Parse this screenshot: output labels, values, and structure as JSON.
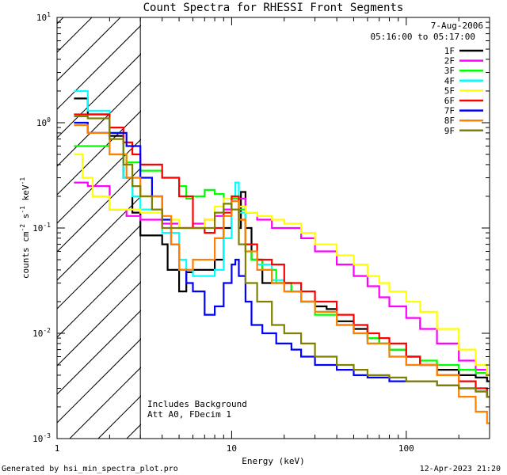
{
  "chart_data": {
    "type": "line",
    "title": "Count Spectra for RHESSI Front Segments",
    "xlabel": "Energy (keV)",
    "ylabel_parts": [
      "counts cm",
      "-2",
      " s",
      "-1",
      " keV",
      "-1"
    ],
    "xscale": "log",
    "yscale": "log",
    "xlim": [
      1,
      300
    ],
    "ylim": [
      0.001,
      10
    ],
    "xticks": [
      {
        "v": 1,
        "t": "1"
      },
      {
        "v": 10,
        "t": "10"
      },
      {
        "v": 100,
        "t": "100"
      }
    ],
    "yticks": [
      {
        "e": 1,
        "base": "10",
        "exp": "1"
      },
      {
        "e": 0,
        "base": "10",
        "exp": "0"
      },
      {
        "e": -1,
        "base": "10",
        "exp": "-1"
      },
      {
        "e": -2,
        "base": "10",
        "exp": "-2"
      },
      {
        "e": -3,
        "base": "10",
        "exp": "-3"
      }
    ],
    "hatched_region": [
      1,
      3
    ],
    "date": "7-Aug-2006",
    "time_range": "05:16:00 to 05:17:00",
    "annotations": [
      "Includes Background",
      "Att A0, FDecim 1"
    ],
    "legend_position": "top-right",
    "series": [
      {
        "name": "1F",
        "color": "#000000",
        "points": [
          [
            1.25,
            1.7
          ],
          [
            1.5,
            1.2
          ],
          [
            2,
            0.75
          ],
          [
            2.4,
            0.3
          ],
          [
            2.7,
            0.14
          ],
          [
            3,
            0.085
          ],
          [
            4,
            0.07
          ],
          [
            4.3,
            0.04
          ],
          [
            5,
            0.025
          ],
          [
            5.5,
            0.038
          ],
          [
            6,
            0.04
          ],
          [
            7,
            0.04
          ],
          [
            8,
            0.05
          ],
          [
            9,
            0.1
          ],
          [
            10,
            0.19
          ],
          [
            11,
            0.1
          ],
          [
            11.3,
            0.22
          ],
          [
            12,
            0.1
          ],
          [
            13,
            0.05
          ],
          [
            15,
            0.03
          ],
          [
            18,
            0.03
          ],
          [
            22,
            0.025
          ],
          [
            25,
            0.02
          ],
          [
            30,
            0.018
          ],
          [
            35,
            0.017
          ],
          [
            40,
            0.013
          ],
          [
            50,
            0.011
          ],
          [
            60,
            0.009
          ],
          [
            70,
            0.008
          ],
          [
            80,
            0.007
          ],
          [
            100,
            0.006
          ],
          [
            120,
            0.005
          ],
          [
            150,
            0.0045
          ],
          [
            200,
            0.004
          ],
          [
            250,
            0.0038
          ],
          [
            290,
            0.0035
          ]
        ]
      },
      {
        "name": "2F",
        "color": "#ff00ff",
        "points": [
          [
            1.25,
            0.27
          ],
          [
            1.5,
            0.25
          ],
          [
            2,
            0.15
          ],
          [
            2.5,
            0.13
          ],
          [
            3,
            0.12
          ],
          [
            4,
            0.11
          ],
          [
            5,
            0.1
          ],
          [
            6,
            0.11
          ],
          [
            7,
            0.12
          ],
          [
            8,
            0.13
          ],
          [
            9,
            0.15
          ],
          [
            10,
            0.18
          ],
          [
            11,
            0.19
          ],
          [
            12,
            0.14
          ],
          [
            14,
            0.12
          ],
          [
            17,
            0.1
          ],
          [
            20,
            0.1
          ],
          [
            25,
            0.08
          ],
          [
            30,
            0.06
          ],
          [
            40,
            0.045
          ],
          [
            50,
            0.035
          ],
          [
            60,
            0.028
          ],
          [
            70,
            0.022
          ],
          [
            80,
            0.018
          ],
          [
            100,
            0.014
          ],
          [
            120,
            0.011
          ],
          [
            150,
            0.008
          ],
          [
            200,
            0.0055
          ],
          [
            250,
            0.0045
          ],
          [
            290,
            0.004
          ]
        ]
      },
      {
        "name": "3F",
        "color": "#00ff00",
        "points": [
          [
            1.25,
            0.6
          ],
          [
            1.5,
            0.6
          ],
          [
            2,
            0.5
          ],
          [
            2.5,
            0.42
          ],
          [
            3,
            0.35
          ],
          [
            4,
            0.3
          ],
          [
            5,
            0.25
          ],
          [
            5.5,
            0.19
          ],
          [
            6,
            0.2
          ],
          [
            6.5,
            0.2
          ],
          [
            7,
            0.23
          ],
          [
            8,
            0.21
          ],
          [
            9,
            0.17
          ],
          [
            10,
            0.19
          ],
          [
            11,
            0.15
          ],
          [
            12,
            0.06
          ],
          [
            13,
            0.05
          ],
          [
            15,
            0.04
          ],
          [
            18,
            0.03
          ],
          [
            22,
            0.025
          ],
          [
            25,
            0.02
          ],
          [
            30,
            0.015
          ],
          [
            40,
            0.012
          ],
          [
            50,
            0.01
          ],
          [
            60,
            0.009
          ],
          [
            70,
            0.008
          ],
          [
            80,
            0.007
          ],
          [
            100,
            0.006
          ],
          [
            120,
            0.0055
          ],
          [
            150,
            0.005
          ],
          [
            200,
            0.0045
          ],
          [
            250,
            0.0042
          ],
          [
            290,
            0.004
          ]
        ]
      },
      {
        "name": "4F",
        "color": "#00ffff",
        "points": [
          [
            1.25,
            2.0
          ],
          [
            1.5,
            1.3
          ],
          [
            2,
            0.8
          ],
          [
            2.4,
            0.3
          ],
          [
            2.7,
            0.2
          ],
          [
            3,
            0.15
          ],
          [
            4,
            0.09
          ],
          [
            5,
            0.05
          ],
          [
            5.5,
            0.04
          ],
          [
            6,
            0.035
          ],
          [
            7,
            0.035
          ],
          [
            8,
            0.04
          ],
          [
            9,
            0.08
          ],
          [
            10,
            0.2
          ],
          [
            10.5,
            0.27
          ],
          [
            11,
            0.14
          ],
          [
            12,
            0.07
          ],
          [
            14,
            0.045
          ],
          [
            17,
            0.032
          ],
          [
            20,
            0.025
          ],
          [
            25,
            0.02
          ],
          [
            30,
            0.016
          ],
          [
            40,
            0.012
          ],
          [
            50,
            0.01
          ],
          [
            60,
            0.008
          ],
          [
            80,
            0.006
          ],
          [
            100,
            0.005
          ],
          [
            150,
            0.004
          ],
          [
            200,
            0.0035
          ],
          [
            250,
            0.003
          ],
          [
            290,
            0.0025
          ]
        ]
      },
      {
        "name": "5F",
        "color": "#ffff00",
        "points": [
          [
            1.25,
            0.5
          ],
          [
            1.4,
            0.3
          ],
          [
            1.6,
            0.2
          ],
          [
            2,
            0.15
          ],
          [
            2.5,
            0.15
          ],
          [
            3,
            0.14
          ],
          [
            4,
            0.12
          ],
          [
            5,
            0.1
          ],
          [
            6,
            0.1
          ],
          [
            7,
            0.12
          ],
          [
            8,
            0.16
          ],
          [
            9,
            0.19
          ],
          [
            10,
            0.2
          ],
          [
            11,
            0.16
          ],
          [
            12,
            0.14
          ],
          [
            14,
            0.13
          ],
          [
            17,
            0.12
          ],
          [
            20,
            0.11
          ],
          [
            25,
            0.09
          ],
          [
            30,
            0.07
          ],
          [
            40,
            0.055
          ],
          [
            50,
            0.045
          ],
          [
            60,
            0.035
          ],
          [
            70,
            0.03
          ],
          [
            80,
            0.025
          ],
          [
            100,
            0.02
          ],
          [
            120,
            0.016
          ],
          [
            150,
            0.011
          ],
          [
            200,
            0.007
          ],
          [
            250,
            0.005
          ],
          [
            290,
            0.004
          ]
        ]
      },
      {
        "name": "6F",
        "color": "#ff0000",
        "points": [
          [
            1.25,
            1.2
          ],
          [
            1.5,
            1.2
          ],
          [
            2,
            0.9
          ],
          [
            2.4,
            0.65
          ],
          [
            2.7,
            0.5
          ],
          [
            3,
            0.4
          ],
          [
            4,
            0.3
          ],
          [
            5,
            0.2
          ],
          [
            6,
            0.1
          ],
          [
            7,
            0.09
          ],
          [
            8,
            0.1
          ],
          [
            9,
            0.14
          ],
          [
            10,
            0.2
          ],
          [
            11,
            0.12
          ],
          [
            12,
            0.07
          ],
          [
            14,
            0.05
          ],
          [
            17,
            0.045
          ],
          [
            20,
            0.03
          ],
          [
            25,
            0.025
          ],
          [
            30,
            0.02
          ],
          [
            40,
            0.015
          ],
          [
            50,
            0.012
          ],
          [
            60,
            0.01
          ],
          [
            70,
            0.009
          ],
          [
            80,
            0.008
          ],
          [
            100,
            0.006
          ],
          [
            120,
            0.005
          ],
          [
            150,
            0.004
          ],
          [
            200,
            0.0035
          ],
          [
            250,
            0.003
          ],
          [
            290,
            0.0025
          ]
        ]
      },
      {
        "name": "7F",
        "color": "#0000ff",
        "points": [
          [
            1.25,
            1.0
          ],
          [
            1.5,
            0.8
          ],
          [
            2,
            0.8
          ],
          [
            2.5,
            0.6
          ],
          [
            3,
            0.3
          ],
          [
            3.5,
            0.2
          ],
          [
            4,
            0.12
          ],
          [
            4.5,
            0.07
          ],
          [
            5,
            0.04
          ],
          [
            5.5,
            0.03
          ],
          [
            6,
            0.025
          ],
          [
            7,
            0.015
          ],
          [
            8,
            0.018
          ],
          [
            9,
            0.03
          ],
          [
            10,
            0.045
          ],
          [
            10.5,
            0.05
          ],
          [
            11,
            0.035
          ],
          [
            12,
            0.02
          ],
          [
            13,
            0.012
          ],
          [
            15,
            0.01
          ],
          [
            18,
            0.008
          ],
          [
            22,
            0.007
          ],
          [
            25,
            0.006
          ],
          [
            30,
            0.005
          ],
          [
            40,
            0.0045
          ],
          [
            50,
            0.004
          ],
          [
            60,
            0.0038
          ],
          [
            80,
            0.0035
          ],
          [
            100,
            0.0035
          ],
          [
            150,
            0.0032
          ],
          [
            200,
            0.003
          ],
          [
            250,
            0.0028
          ],
          [
            290,
            0.0025
          ]
        ]
      },
      {
        "name": "8F",
        "color": "#ff8000",
        "points": [
          [
            1.25,
            0.95
          ],
          [
            1.5,
            0.8
          ],
          [
            2,
            0.5
          ],
          [
            2.5,
            0.3
          ],
          [
            3,
            0.2
          ],
          [
            4,
            0.13
          ],
          [
            4.5,
            0.07
          ],
          [
            5,
            0.04
          ],
          [
            6,
            0.05
          ],
          [
            7,
            0.05
          ],
          [
            8,
            0.08
          ],
          [
            9,
            0.13
          ],
          [
            10,
            0.18
          ],
          [
            11,
            0.12
          ],
          [
            12,
            0.06
          ],
          [
            14,
            0.04
          ],
          [
            17,
            0.03
          ],
          [
            20,
            0.025
          ],
          [
            25,
            0.02
          ],
          [
            30,
            0.016
          ],
          [
            40,
            0.012
          ],
          [
            50,
            0.01
          ],
          [
            60,
            0.008
          ],
          [
            80,
            0.006
          ],
          [
            100,
            0.005
          ],
          [
            150,
            0.004
          ],
          [
            200,
            0.0025
          ],
          [
            250,
            0.0018
          ],
          [
            290,
            0.0014
          ]
        ]
      },
      {
        "name": "9F",
        "color": "#808000",
        "points": [
          [
            1.25,
            1.15
          ],
          [
            1.5,
            1.1
          ],
          [
            2,
            0.7
          ],
          [
            2.4,
            0.4
          ],
          [
            2.7,
            0.25
          ],
          [
            3,
            0.2
          ],
          [
            3.5,
            0.15
          ],
          [
            4,
            0.1
          ],
          [
            5,
            0.1
          ],
          [
            6,
            0.1
          ],
          [
            7,
            0.1
          ],
          [
            8,
            0.14
          ],
          [
            9,
            0.17
          ],
          [
            10,
            0.15
          ],
          [
            11,
            0.07
          ],
          [
            12,
            0.03
          ],
          [
            14,
            0.02
          ],
          [
            17,
            0.012
          ],
          [
            20,
            0.01
          ],
          [
            25,
            0.008
          ],
          [
            30,
            0.006
          ],
          [
            40,
            0.005
          ],
          [
            50,
            0.0045
          ],
          [
            60,
            0.004
          ],
          [
            80,
            0.0038
          ],
          [
            100,
            0.0035
          ],
          [
            150,
            0.0032
          ],
          [
            200,
            0.003
          ],
          [
            250,
            0.0028
          ],
          [
            290,
            0.0025
          ]
        ]
      }
    ]
  },
  "footer": {
    "left": "Generated by hsi_min_spectra_plot.pro",
    "right": "12-Apr-2023 21:20"
  }
}
